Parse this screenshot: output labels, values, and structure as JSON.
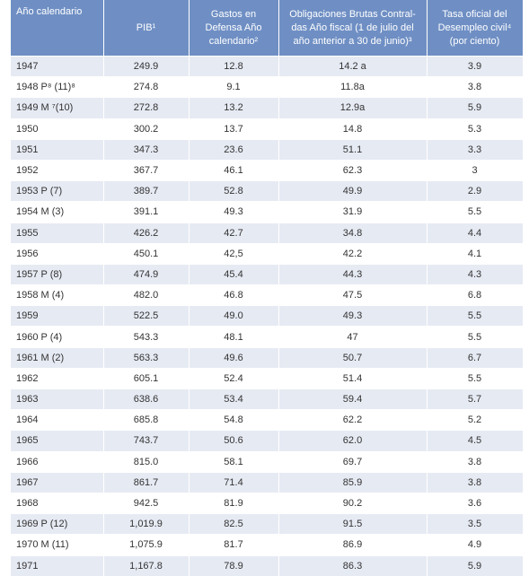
{
  "table": {
    "columns": [
      "Año calendario",
      "PIB¹",
      "Gastos en Defensa Año calendario²",
      "Obligaciones Brutas Contral-das Año fiscal (1 de julio del año anterior a 30 de junio)³",
      "Tasa oficial del Desempleo civil⁴ (por ciento)"
    ],
    "rows": [
      [
        "1947",
        "249.9",
        "12.8",
        "14.2 a",
        "3.9"
      ],
      [
        "1948 P⁸ (11)⁸",
        "274.8",
        "9.1",
        "11.8a",
        "3.8"
      ],
      [
        "1949 M ⁷(10)",
        "272.8",
        "13.2",
        "12.9a",
        "5.9"
      ],
      [
        "1950",
        "300.2",
        "13.7",
        "14.8",
        "5.3"
      ],
      [
        "1951",
        "347.3",
        "23.6",
        "51.1",
        "3.3"
      ],
      [
        "1952",
        "367.7",
        "46.1",
        "62.3",
        "3"
      ],
      [
        "1953 P (7)",
        "389.7",
        "52.8",
        "49.9",
        "2.9"
      ],
      [
        "1954 M (3)",
        "391.1",
        "49.3",
        "31.9",
        "5.5"
      ],
      [
        "1955",
        "426.2",
        "42.7",
        "34.8",
        "4.4"
      ],
      [
        "1956",
        "450.1",
        "42,5",
        "42.2",
        "4.1"
      ],
      [
        "1957 P (8)",
        "474.9",
        "45.4",
        "44.3",
        "4.3"
      ],
      [
        "1958 M (4)",
        "482.0",
        "46.8",
        "47.5",
        "6.8"
      ],
      [
        "1959",
        "522.5",
        "49.0",
        "49.3",
        "5.5"
      ],
      [
        "1960 P (4)",
        "543.3",
        "48.1",
        "47",
        "5.5"
      ],
      [
        "1961 M (2)",
        "563.3",
        "49.6",
        "50.7",
        "6.7"
      ],
      [
        "1962",
        "605.1",
        "52.4",
        "51.4",
        "5.5"
      ],
      [
        "1963",
        "638.6",
        "53.4",
        "59.4",
        "5.7"
      ],
      [
        "1964",
        "685.8",
        "54.8",
        "62.2",
        "5.2"
      ],
      [
        "1965",
        "743.7",
        "50.6",
        "62.0",
        "4.5"
      ],
      [
        "1966",
        "815.0",
        "58.1",
        "69.7",
        "3.8"
      ],
      [
        "1967",
        "861.7",
        "71.4",
        "85.9",
        "3.8"
      ],
      [
        "1968",
        "942.5",
        "81.9",
        "90.2",
        "3.6"
      ],
      [
        "1969 P (12)",
        "1,019.9",
        "82.5",
        "91.5",
        "3.5"
      ],
      [
        "1970 M (11)",
        "1,075.9",
        "81.7",
        "86.9",
        "4.9"
      ],
      [
        "1971",
        "1,167.8",
        "78.9",
        "86.3",
        "5.9"
      ]
    ]
  }
}
